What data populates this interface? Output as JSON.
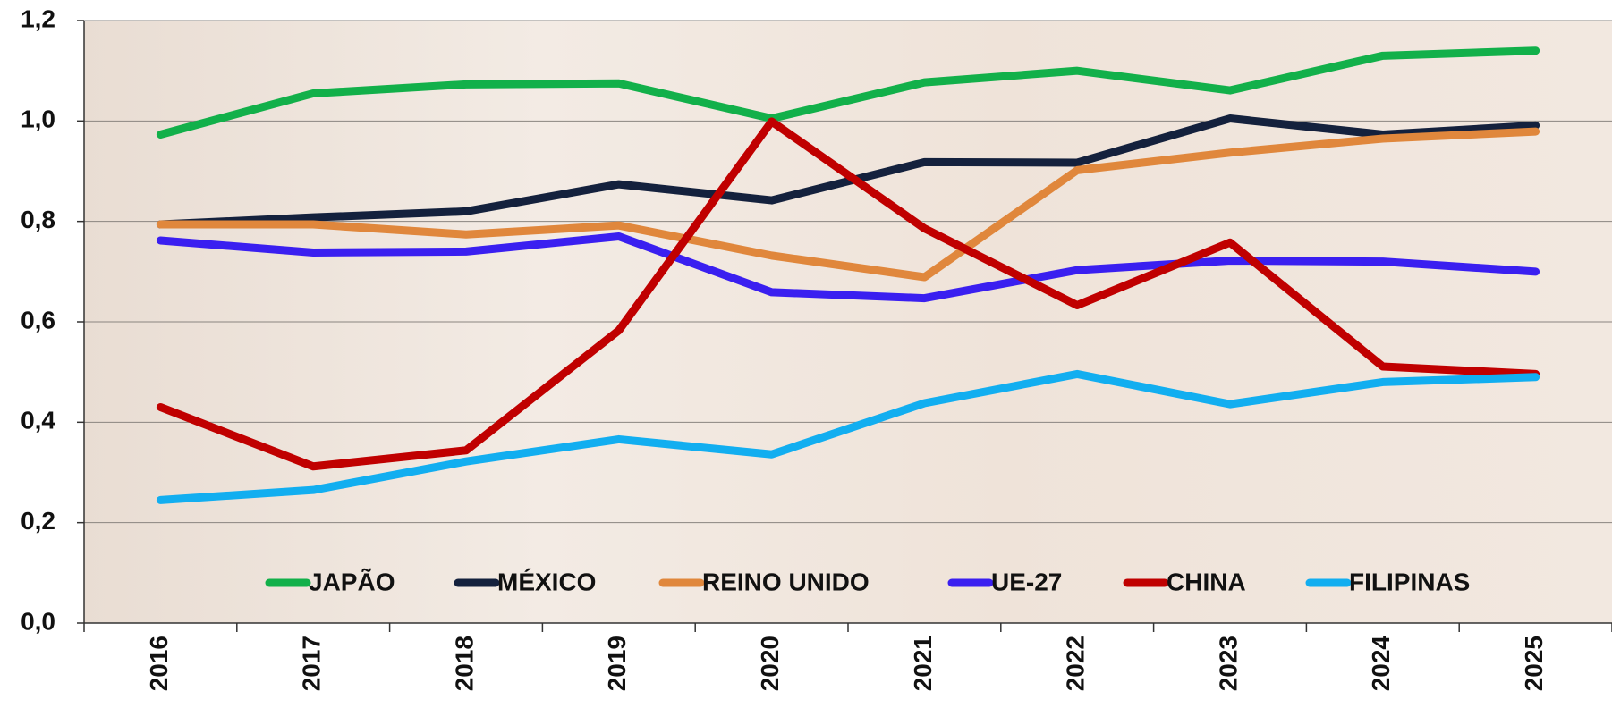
{
  "chart_data": {
    "type": "line",
    "categories": [
      "2016",
      "2017",
      "2018",
      "2019",
      "2020",
      "2021",
      "2022",
      "2023",
      "2024",
      "2025"
    ],
    "series": [
      {
        "name": "JAPÃO",
        "color": "#12b04a",
        "values": [
          0.973,
          1.055,
          1.073,
          1.075,
          1.005,
          1.077,
          1.1,
          1.061,
          1.13,
          1.14
        ]
      },
      {
        "name": "MÉXICO",
        "color": "#14213d",
        "values": [
          0.794,
          0.808,
          0.82,
          0.874,
          0.842,
          0.918,
          0.917,
          1.005,
          0.973,
          0.991
        ]
      },
      {
        "name": "REINO UNIDO",
        "color": "#e0873c",
        "values": [
          0.794,
          0.794,
          0.774,
          0.792,
          0.732,
          0.689,
          0.902,
          0.937,
          0.965,
          0.979
        ]
      },
      {
        "name": "UE-27",
        "color": "#3a1ff0",
        "values": [
          0.762,
          0.738,
          0.74,
          0.77,
          0.659,
          0.647,
          0.703,
          0.722,
          0.72,
          0.7
        ]
      },
      {
        "name": "CHINA",
        "color": "#c00000",
        "values": [
          0.43,
          0.312,
          0.344,
          0.583,
          0.999,
          0.786,
          0.633,
          0.758,
          0.511,
          0.496
        ]
      },
      {
        "name": "FILIPINAS",
        "color": "#12aef0",
        "values": [
          0.245,
          0.265,
          0.322,
          0.366,
          0.336,
          0.438,
          0.496,
          0.436,
          0.48,
          0.49
        ]
      }
    ],
    "ylim": [
      0,
      1.2
    ],
    "yticks": [
      {
        "value": 0,
        "label": "0,0"
      },
      {
        "value": 0.2,
        "label": "0,2"
      },
      {
        "value": 0.4,
        "label": "0,4"
      },
      {
        "value": 0.6,
        "label": "0,6"
      },
      {
        "value": 0.8,
        "label": "0,8"
      },
      {
        "value": 1,
        "label": "1,0"
      },
      {
        "value": 1.2,
        "label": "1,2"
      }
    ],
    "grid": true,
    "legend": "bottom"
  }
}
